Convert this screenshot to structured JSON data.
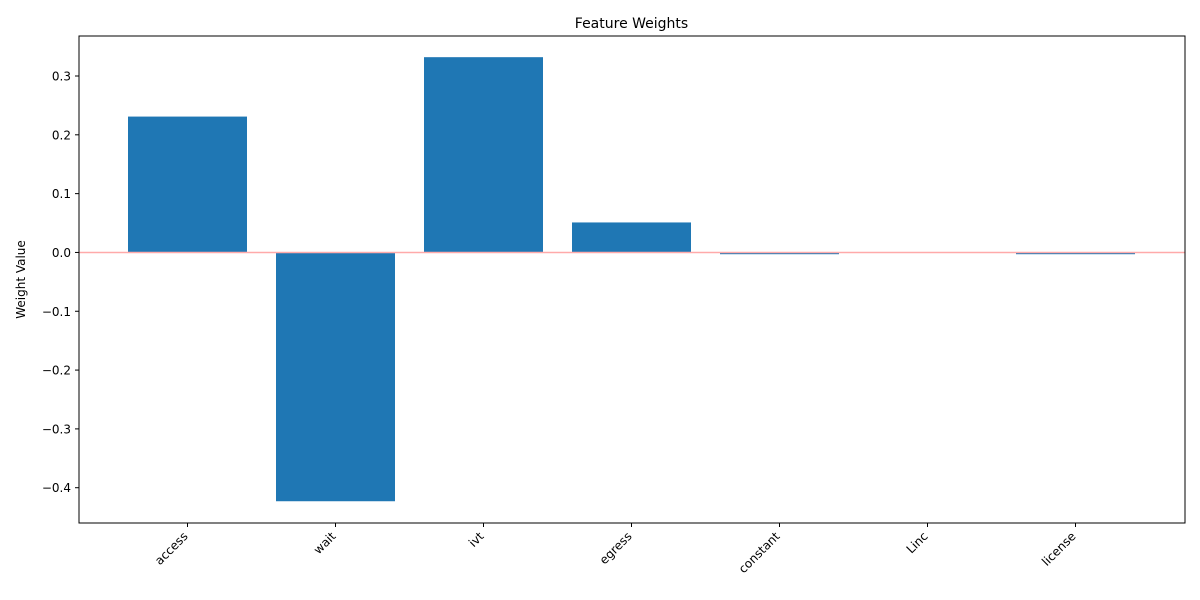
{
  "chart_data": {
    "type": "bar",
    "title": "Feature Weights",
    "xlabel": "",
    "ylabel": "Weight Value",
    "categories": [
      "access",
      "wait",
      "ivt",
      "egress",
      "constant",
      "Linc",
      "license"
    ],
    "values": [
      0.231,
      -0.423,
      0.332,
      0.051,
      -0.003,
      0.0,
      -0.003
    ],
    "ylim": [
      -0.46,
      0.368
    ],
    "yticks": [
      -0.4,
      -0.3,
      -0.2,
      -0.1,
      0.0,
      0.1,
      0.2,
      0.3
    ],
    "ytick_labels": [
      "−0.4",
      "−0.3",
      "−0.2",
      "−0.1",
      "0.0",
      "0.1",
      "0.2",
      "0.3"
    ],
    "bar_color": "#1f77b4",
    "zero_line_color": "#ffaaaa",
    "grid": false,
    "xtick_rotation": "45 degrees"
  }
}
